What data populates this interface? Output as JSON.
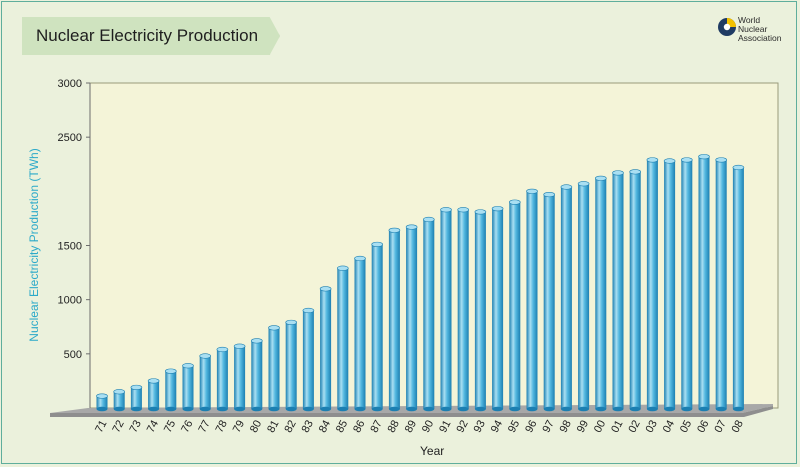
{
  "title": "Nuclear Electricity Production",
  "logo": {
    "line1": "World",
    "line2": "Nuclear",
    "line3": "Association",
    "icon": "wna-logo-icon"
  },
  "colors": {
    "bar": "#3fa9d6",
    "bar_light": "#a9dff2",
    "bar_dark": "#1c7fb1",
    "floor": "#a8a8a8",
    "plot_bg": "#f4f4d8"
  },
  "chart_data": {
    "type": "bar",
    "title": "Nuclear Electricity Production",
    "xlabel": "Year",
    "ylabel": "Nuclear Electricity Production (TWh)",
    "ylim": [
      0,
      3000
    ],
    "yticks": [
      "500",
      "1000",
      "1500",
      "2500",
      "3000"
    ],
    "categories": [
      "71",
      "72",
      "73",
      "74",
      "75",
      "76",
      "77",
      "78",
      "79",
      "80",
      "81",
      "82",
      "83",
      "84",
      "85",
      "86",
      "87",
      "88",
      "89",
      "90",
      "91",
      "92",
      "93",
      "94",
      "95",
      "96",
      "97",
      "98",
      "99",
      "00",
      "01",
      "02",
      "03",
      "04",
      "05",
      "06",
      "07",
      "08"
    ],
    "values": [
      110,
      150,
      190,
      250,
      340,
      390,
      480,
      540,
      570,
      620,
      740,
      790,
      900,
      1100,
      1290,
      1380,
      1510,
      1640,
      1670,
      1740,
      1830,
      1830,
      1810,
      1840,
      1900,
      2000,
      1970,
      2040,
      2070,
      2120,
      2170,
      2180,
      2290,
      2280,
      2290,
      2320,
      2290,
      2220
    ]
  }
}
